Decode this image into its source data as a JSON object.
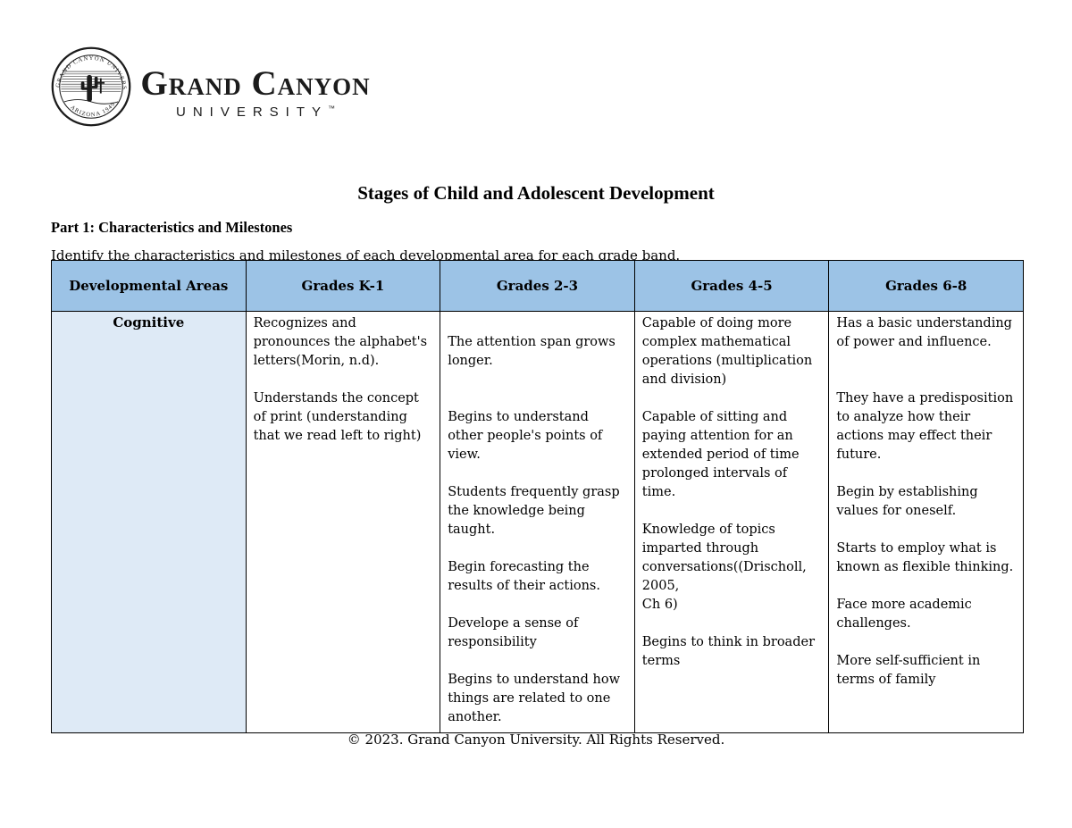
{
  "page": {
    "title": "Stages of Child and Adolescent Development",
    "part_heading": "Part 1: Characteristics and Milestones",
    "instruction": "Identify the characteristics and milestones of each developmental area for each grade band.",
    "footer": "© 2023. Grand Canyon University. All Rights Reserved."
  },
  "logo": {
    "wordmark": "Grand Canyon",
    "wordmark_sub": "UNIVERSITY",
    "trademark": "™",
    "seal_arc_top": "GRAND CANYON UNIVERSITY",
    "seal_arc_bottom": "ARIZONA 1949"
  },
  "colors": {
    "header_bg": "#9CC3E6",
    "row_label_bg": "#DEEAF6",
    "border": "#000000",
    "text": "#000000"
  },
  "table": {
    "columns": [
      "Developmental Areas",
      "Grades K-1",
      "Grades 2-3",
      "Grades 4-5",
      "Grades 6-8"
    ],
    "rows": [
      {
        "area": "Cognitive",
        "cells": [
          [
            "Recognizes and pronounces the alphabet's letters(Morin, n.d).",
            "",
            "Understands the concept of print (understanding that we read left to right)"
          ],
          [
            "",
            "The attention span grows longer.",
            "",
            "",
            "Begins to understand other people's points of view.",
            "",
            "Students frequently grasp the knowledge being taught.",
            "",
            "Begin forecasting the results of their actions.",
            "",
            "Develope a sense of responsibility",
            "",
            "Begins to understand how things are related to one another."
          ],
          [
            "Capable of doing more complex mathematical operations (multiplication and division)",
            "",
            "Capable of sitting and paying attention for an extended period of time prolonged intervals of time.",
            "",
            "Knowledge of topics\nimparted through\nconversations((Drischoll,\n2005,\nCh 6)",
            "",
            "Begins to think in broader terms"
          ],
          [
            "Has a basic understanding of power and influence.",
            "",
            "",
            "They have a predisposition to analyze how their actions may effect their future.",
            "",
            "Begin by establishing values for oneself.",
            "",
            "Starts to employ what is known as flexible thinking.",
            "",
            "Face more academic challenges.",
            "",
            "More self-sufficient in terms of family"
          ]
        ]
      }
    ]
  }
}
